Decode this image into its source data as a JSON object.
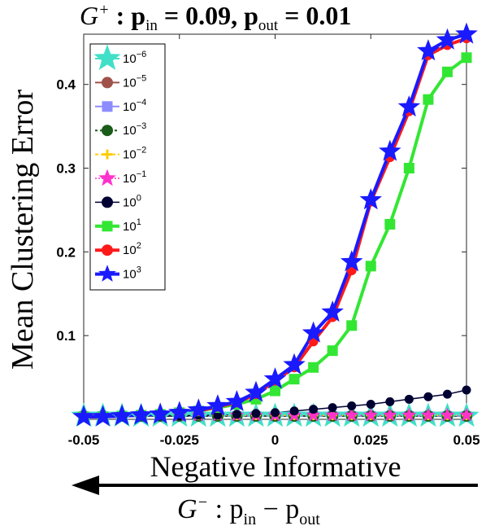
{
  "chart_data": {
    "type": "line",
    "title_main": "G",
    "title_sup": "+",
    "title_rest": " : p",
    "title_in_sub": "in",
    "title_eq1": " = 0.09,  p",
    "title_out_sub": "out",
    "title_eq2": " = 0.01",
    "ylabel": "Mean Clustering Error",
    "xlabel": "Negative Informative",
    "bottom_label_main": "G",
    "bottom_label_sup": "−",
    "bottom_label_mid": " : p",
    "bottom_label_in_sub": "in",
    "bottom_label_minus": " − p",
    "bottom_label_out_sub": "out",
    "xlim": [
      -0.05,
      0.05
    ],
    "ylim": [
      0,
      0.46
    ],
    "xticks": [
      -0.05,
      -0.025,
      0,
      0.025,
      0.05
    ],
    "xtick_labels": [
      "-0.05",
      "-0.025",
      "0",
      "0.025",
      "0.05"
    ],
    "yticks": [
      0.1,
      0.2,
      0.3,
      0.4
    ],
    "ytick_labels": [
      "0.1",
      "0.2",
      "0.3",
      "0.4"
    ],
    "x": [
      -0.05,
      -0.045,
      -0.04,
      -0.035,
      -0.03,
      -0.025,
      -0.02,
      -0.015,
      -0.01,
      -0.005,
      0,
      0.005,
      0.01,
      0.015,
      0.02,
      0.025,
      0.03,
      0.035,
      0.04,
      0.045,
      0.05
    ],
    "series": [
      {
        "name": "10",
        "exp": "−6",
        "color": "#40e0c8",
        "marker": "star",
        "lw": 2,
        "values": [
          0.004,
          0.004,
          0.004,
          0.004,
          0.004,
          0.004,
          0.004,
          0.004,
          0.004,
          0.004,
          0.004,
          0.004,
          0.004,
          0.004,
          0.004,
          0.004,
          0.004,
          0.004,
          0.004,
          0.004,
          0.004
        ]
      },
      {
        "name": "10",
        "exp": "−5",
        "color": "#a0524a",
        "marker": "circle",
        "lw": 2,
        "values": [
          0.004,
          0.004,
          0.004,
          0.004,
          0.004,
          0.004,
          0.004,
          0.004,
          0.004,
          0.004,
          0.004,
          0.004,
          0.004,
          0.004,
          0.004,
          0.004,
          0.004,
          0.004,
          0.004,
          0.004,
          0.004
        ]
      },
      {
        "name": "10",
        "exp": "−4",
        "color": "#8c8cff",
        "marker": "square",
        "lw": 2,
        "values": [
          0.004,
          0.004,
          0.004,
          0.004,
          0.004,
          0.004,
          0.004,
          0.004,
          0.004,
          0.004,
          0.004,
          0.004,
          0.004,
          0.004,
          0.004,
          0.004,
          0.004,
          0.004,
          0.004,
          0.004,
          0.004
        ]
      },
      {
        "name": "10",
        "exp": "−3",
        "color": "#1a5c1a",
        "marker": "circle",
        "lw": 2,
        "dash": "3,3",
        "values": [
          0.004,
          0.004,
          0.004,
          0.004,
          0.004,
          0.004,
          0.004,
          0.004,
          0.004,
          0.004,
          0.004,
          0.004,
          0.004,
          0.004,
          0.004,
          0.004,
          0.004,
          0.004,
          0.004,
          0.004,
          0.004
        ]
      },
      {
        "name": "10",
        "exp": "−2",
        "color": "#ffcc00",
        "marker": "plus",
        "lw": 2,
        "dash": "4,3",
        "values": [
          0.005,
          0.005,
          0.005,
          0.005,
          0.005,
          0.005,
          0.005,
          0.005,
          0.005,
          0.005,
          0.005,
          0.005,
          0.005,
          0.005,
          0.005,
          0.005,
          0.005,
          0.005,
          0.005,
          0.005,
          0.005
        ]
      },
      {
        "name": "10",
        "exp": "−1",
        "color": "#ff33cc",
        "marker": "star",
        "lw": 1.5,
        "dash": "2,2",
        "values": [
          0.005,
          0.005,
          0.005,
          0.005,
          0.005,
          0.005,
          0.005,
          0.005,
          0.005,
          0.005,
          0.005,
          0.005,
          0.005,
          0.005,
          0.005,
          0.005,
          0.005,
          0.005,
          0.005,
          0.005,
          0.005
        ]
      },
      {
        "name": "10",
        "exp": "0",
        "color": "#000033",
        "marker": "circle",
        "lw": 1.5,
        "values": [
          0.003,
          0.003,
          0.003,
          0.004,
          0.004,
          0.004,
          0.005,
          0.005,
          0.006,
          0.007,
          0.008,
          0.01,
          0.012,
          0.014,
          0.016,
          0.018,
          0.021,
          0.024,
          0.027,
          0.03,
          0.035
        ]
      },
      {
        "name": "10",
        "exp": "1",
        "color": "#33e633",
        "marker": "square",
        "lw": 4,
        "values": [
          0.003,
          0.003,
          0.004,
          0.005,
          0.006,
          0.008,
          0.01,
          0.014,
          0.018,
          0.024,
          0.034,
          0.048,
          0.062,
          0.082,
          0.112,
          0.183,
          0.233,
          0.3,
          0.382,
          0.415,
          0.432
        ]
      },
      {
        "name": "10",
        "exp": "2",
        "color": "#ff1a1a",
        "marker": "circle",
        "lw": 4,
        "values": [
          0.003,
          0.003,
          0.004,
          0.005,
          0.006,
          0.008,
          0.01,
          0.015,
          0.02,
          0.03,
          0.046,
          0.062,
          0.093,
          0.122,
          0.178,
          0.26,
          0.313,
          0.368,
          0.435,
          0.447,
          0.455
        ]
      },
      {
        "name": "10",
        "exp": "3",
        "color": "#1a1aff",
        "marker": "star",
        "lw": 4,
        "values": [
          0.003,
          0.003,
          0.004,
          0.005,
          0.006,
          0.008,
          0.011,
          0.016,
          0.021,
          0.032,
          0.048,
          0.065,
          0.103,
          0.128,
          0.188,
          0.262,
          0.32,
          0.373,
          0.44,
          0.453,
          0.46
        ]
      }
    ],
    "legend_position": "top-left",
    "grid": false
  }
}
